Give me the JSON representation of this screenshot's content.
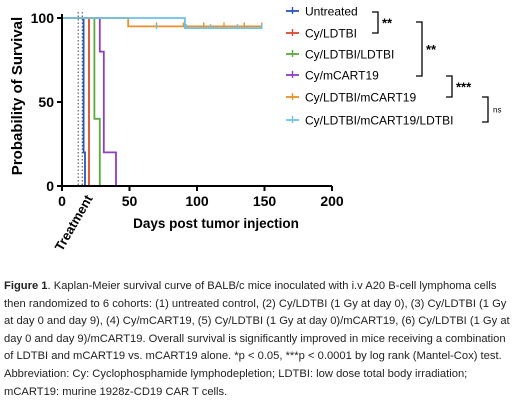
{
  "chart_data": {
    "type": "step",
    "ylabel": "Probability of Survival",
    "xlabel": "Days post tumor injection",
    "xlim": [
      0,
      200
    ],
    "ylim": [
      0,
      100
    ],
    "xticks": [
      0,
      50,
      100,
      150,
      200
    ],
    "yticks": [
      0,
      50,
      100
    ],
    "treatment_label": "Treatment",
    "treatment_days": [
      12,
      15
    ],
    "legend_placement": "right",
    "series": [
      {
        "name": "Untreated",
        "color": "#2b54b8",
        "steps": [
          [
            0,
            100
          ],
          [
            16,
            100
          ],
          [
            16,
            20
          ],
          [
            17,
            20
          ],
          [
            17,
            0
          ]
        ],
        "censor": []
      },
      {
        "name": "Cy/LDTBI",
        "color": "#d84a2c",
        "steps": [
          [
            0,
            100
          ],
          [
            20,
            100
          ],
          [
            20,
            0
          ]
        ],
        "censor": []
      },
      {
        "name": "Cy/LDTBI/LDTBI",
        "color": "#5aab3a",
        "steps": [
          [
            0,
            100
          ],
          [
            24,
            100
          ],
          [
            24,
            40
          ],
          [
            28,
            40
          ],
          [
            28,
            0
          ]
        ],
        "censor": []
      },
      {
        "name": "Cy/mCART19",
        "color": "#8e3fbf",
        "steps": [
          [
            0,
            100
          ],
          [
            28,
            100
          ],
          [
            28,
            80
          ],
          [
            31,
            80
          ],
          [
            31,
            20
          ],
          [
            40,
            20
          ],
          [
            40,
            0
          ]
        ],
        "censor": []
      },
      {
        "name": "Cy/LDTBI/mCART19",
        "color": "#e8902a",
        "steps": [
          [
            0,
            100
          ],
          [
            49,
            100
          ],
          [
            49,
            95
          ],
          [
            148,
            95
          ]
        ],
        "censor": [
          70,
          90,
          105,
          120,
          135,
          148
        ]
      },
      {
        "name": "Cy/LDTBI/mCART19/LDTBI",
        "color": "#6fc1e6",
        "steps": [
          [
            0,
            100
          ],
          [
            91,
            100
          ],
          [
            91,
            94
          ],
          [
            148,
            94
          ]
        ],
        "censor": [
          70,
          92,
          110,
          130,
          148
        ]
      }
    ],
    "significance": [
      {
        "pair": [
          0,
          1
        ],
        "label": "**"
      },
      {
        "pair": [
          1,
          3
        ],
        "label": "**"
      },
      {
        "pair": [
          3,
          4
        ],
        "label": "***"
      },
      {
        "pair": [
          4,
          5
        ],
        "label": "ns"
      }
    ]
  },
  "caption": {
    "figure_label": "Figure 1",
    "text": ". Kaplan-Meier survival curve of BALB/c mice inoculated with i.v A20 B-cell lymphoma cells then randomized to 6 cohorts: (1) untreated control, (2) Cy/LDTBI (1 Gy at day 0), (3) Cy/LDTBI (1 Gy at day 0 and day 9), (4) Cy/mCART19, (5) Cy/LDTBI (1 Gy at day 0)/mCART19, (6) Cy/LDTBI (1 Gy at day 0 and day 9)/mCART19. Overall survival is significantly improved in mice receiving a combination of LDTBI and mCART19 vs. mCART19 alone. *p < 0.05, ***p < 0.0001 by log rank (Mantel-Cox) test. Abbreviation: Cy: Cyclophosphamide lymphodepletion; LDTBI: low dose total body irradiation; mCART19: murine 1928z-CD19 CAR T cells."
  }
}
